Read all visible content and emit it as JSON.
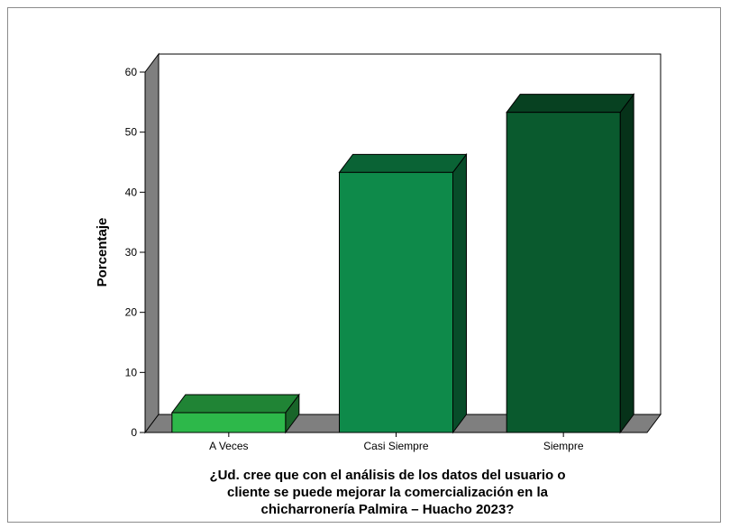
{
  "chart_data": {
    "type": "bar",
    "categories": [
      "A Veces",
      "Casi Siempre",
      "Siempre"
    ],
    "values": [
      3.3,
      43.3,
      53.3
    ],
    "colors": [
      "#2db84a",
      "#0e8a4a",
      "#0a5a2e"
    ],
    "xlabel_lines": [
      "¿Ud. cree que con el análisis de los datos del usuario o",
      "cliente se puede mejorar la comercialización en la",
      "chicharronería Palmira – Huacho 2023?"
    ],
    "ylabel": "Porcentaje",
    "ylim": [
      0,
      60
    ],
    "yticks": [
      "0",
      "10",
      "20",
      "30",
      "40",
      "50",
      "60"
    ],
    "grid": false,
    "legend": "none",
    "style": "3d"
  }
}
